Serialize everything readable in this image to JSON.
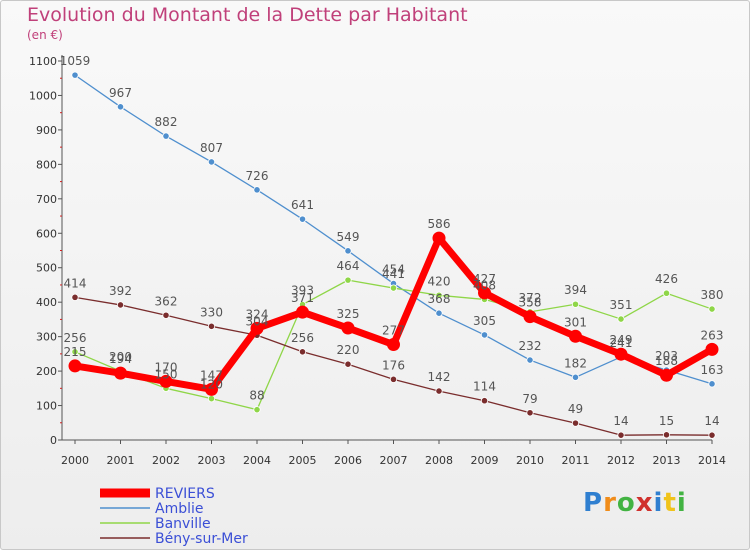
{
  "header": {
    "title": "Evolution du Montant de la Dette par Habitant",
    "subtitle": "(en €)"
  },
  "logo": {
    "letters": [
      "P",
      "r",
      "o",
      "x",
      "i",
      "t",
      "i"
    ]
  },
  "colors": {
    "reviers": "#ff0000",
    "amblie": "#4f8fce",
    "banville": "#8fd648",
    "beny": "#7a2d2d",
    "axis": "#555555",
    "grid": "#d8d8d8",
    "label": "#555555",
    "legend_text": "#3b4fd6"
  },
  "chart_data": {
    "type": "line",
    "title": "Evolution du Montant de la Dette par Habitant",
    "ylabel": "(en €)",
    "x": [
      "2000",
      "2001",
      "2002",
      "2003",
      "2004",
      "2005",
      "2006",
      "2007",
      "2008",
      "2009",
      "2010",
      "2011",
      "2012",
      "2013",
      "2014"
    ],
    "ylim": [
      0,
      1100
    ],
    "yticks": [
      "0",
      "100",
      "200",
      "300",
      "400",
      "500",
      "600",
      "700",
      "800",
      "900",
      "1000",
      "1100"
    ],
    "grid": false,
    "legend_position": "bottom-left",
    "series": [
      {
        "name": "REVIERS",
        "key": "reviers",
        "values": [
          215,
          194,
          170,
          147,
          324,
          371,
          325,
          277,
          586,
          427,
          358,
          301,
          249,
          188,
          263
        ],
        "labels": [
          "215",
          "194",
          "170",
          "147",
          "324",
          "371",
          "325",
          "277",
          "586",
          "427",
          "358",
          "301",
          "249",
          "188",
          "263"
        ]
      },
      {
        "name": "Amblie",
        "key": "amblie",
        "values": [
          1059,
          967,
          882,
          807,
          726,
          641,
          549,
          454,
          368,
          305,
          232,
          182,
          241,
          203,
          163
        ],
        "labels": [
          "1059",
          "967",
          "882",
          "807",
          "726",
          "641",
          "549",
          "454",
          "368",
          "305",
          "232",
          "182",
          "241",
          "203",
          "163"
        ]
      },
      {
        "name": "Banville",
        "key": "banville",
        "values": [
          256,
          200,
          150,
          120,
          88,
          393,
          464,
          441,
          420,
          408,
          372,
          394,
          351,
          426,
          380
        ],
        "labels": [
          "256",
          "200",
          "150",
          "120",
          "88",
          "393",
          "464",
          "441",
          "420",
          "408",
          "372",
          "394",
          "351",
          "426",
          "380"
        ]
      },
      {
        "name": "Bény-sur-Mer",
        "key": "beny",
        "values": [
          414,
          392,
          362,
          330,
          304,
          256,
          220,
          176,
          142,
          114,
          79,
          49,
          14,
          15,
          14
        ],
        "labels": [
          "414",
          "392",
          "362",
          "330",
          "304",
          "256",
          "220",
          "176",
          "142",
          "114",
          "79",
          "49",
          "14",
          "15",
          "14"
        ]
      }
    ]
  }
}
